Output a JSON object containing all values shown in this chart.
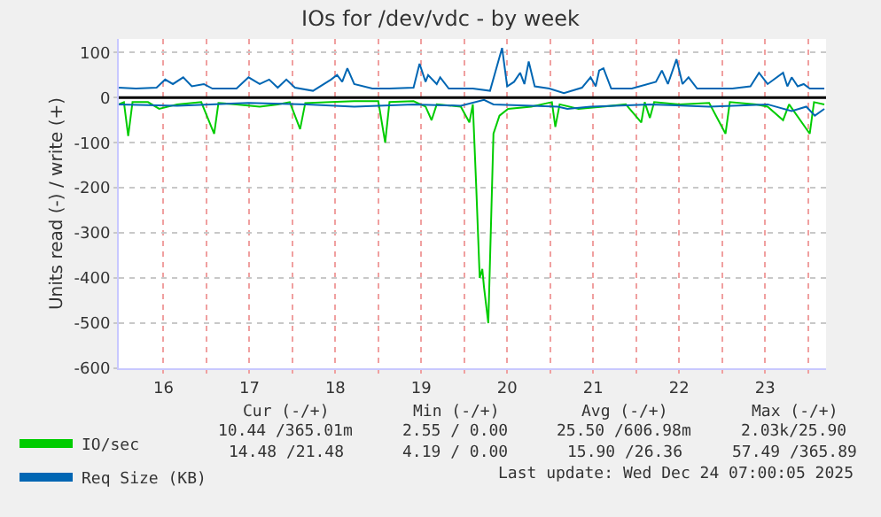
{
  "chart_data": {
    "type": "line",
    "title": "IOs for /dev/vdc - by week",
    "ylabel": "Units read (-) / write (+)",
    "xlim": [
      15.98,
      24.21
    ],
    "ylim": [
      -600,
      130
    ],
    "xticks": [
      {
        "value": 16.5,
        "label": "16"
      },
      {
        "value": 17,
        "label": null
      },
      {
        "value": 17.5,
        "label": "17"
      },
      {
        "value": 18,
        "label": null
      },
      {
        "value": 18.5,
        "label": "18"
      },
      {
        "value": 19,
        "label": null
      },
      {
        "value": 19.5,
        "label": "19"
      },
      {
        "value": 20,
        "label": null
      },
      {
        "value": 20.5,
        "label": "20"
      },
      {
        "value": 21,
        "label": null
      },
      {
        "value": 21.5,
        "label": "21"
      },
      {
        "value": 22,
        "label": null
      },
      {
        "value": 22.5,
        "label": "22"
      },
      {
        "value": 23,
        "label": null
      },
      {
        "value": 23.5,
        "label": "23"
      },
      {
        "value": 24,
        "label": null
      }
    ],
    "yticks": [
      -600,
      -500,
      -400,
      -300,
      -200,
      -100,
      0,
      100
    ],
    "grid": true,
    "legend": "bottom left",
    "marker": "none",
    "line_style": "solid",
    "ref_lines": [
      {
        "axis": "y",
        "value": 0,
        "color": "#000000"
      }
    ],
    "series": [
      {
        "name": "IO/sec",
        "color": "#00cc00",
        "x": [
          15.98,
          16.04,
          16.09,
          16.14,
          16.32,
          16.45,
          16.66,
          16.94,
          17.09,
          17.14,
          17.35,
          17.62,
          17.83,
          17.97,
          18.09,
          18.15,
          18.45,
          18.72,
          19.0,
          19.08,
          19.13,
          19.41,
          19.55,
          19.62,
          19.68,
          19.96,
          20.06,
          20.1,
          20.14,
          20.18,
          20.21,
          20.23,
          20.28,
          20.34,
          20.41,
          20.51,
          20.78,
          21.02,
          21.06,
          21.11,
          21.33,
          21.61,
          21.88,
          22.06,
          22.1,
          22.16,
          22.21,
          22.5,
          22.85,
          23.04,
          23.09,
          23.4,
          23.53,
          23.71,
          23.78,
          24.02,
          24.07,
          24.19
        ],
        "values": [
          -15,
          -10,
          -85,
          -10,
          -10,
          -25,
          -15,
          -10,
          -80,
          -12,
          -15,
          -20,
          -15,
          -10,
          -70,
          -12,
          -10,
          -8,
          -8,
          -100,
          -10,
          -8,
          -20,
          -50,
          -15,
          -20,
          -55,
          -15,
          -200,
          -400,
          -380,
          -420,
          -500,
          -80,
          -40,
          -25,
          -20,
          -10,
          -65,
          -15,
          -25,
          -20,
          -15,
          -55,
          -10,
          -45,
          -10,
          -15,
          -12,
          -80,
          -10,
          -15,
          -20,
          -50,
          -15,
          -80,
          -10,
          -15
        ]
      },
      {
        "name": "Req Size (KB)",
        "color": "#0066b3",
        "x": [
          15.98,
          16.18,
          16.42,
          16.52,
          16.61,
          16.73,
          16.83,
          16.97,
          17.07,
          17.35,
          17.49,
          17.62,
          17.73,
          17.83,
          17.93,
          18.03,
          18.24,
          18.45,
          18.52,
          18.58,
          18.64,
          18.72,
          18.93,
          19.13,
          19.41,
          19.48,
          19.55,
          19.58,
          19.68,
          19.72,
          19.82,
          20.1,
          20.3,
          20.44,
          20.5,
          20.58,
          20.65,
          20.7,
          20.75,
          20.82,
          20.99,
          21.16,
          21.37,
          21.47,
          21.53,
          21.57,
          21.62,
          21.71,
          21.95,
          22.23,
          22.3,
          22.37,
          22.47,
          22.54,
          22.61,
          22.71,
          23.12,
          23.33,
          23.43,
          23.53,
          23.71,
          23.76,
          23.81,
          23.88,
          23.95,
          24.02,
          24.19
        ],
        "values": [
          22,
          20,
          22,
          40,
          30,
          45,
          25,
          30,
          20,
          20,
          45,
          30,
          40,
          22,
          40,
          22,
          15,
          40,
          50,
          35,
          65,
          30,
          20,
          20,
          22,
          75,
          35,
          50,
          30,
          45,
          20,
          20,
          15,
          110,
          25,
          35,
          55,
          30,
          80,
          25,
          20,
          10,
          22,
          45,
          25,
          60,
          65,
          20,
          20,
          35,
          60,
          30,
          85,
          30,
          45,
          20,
          20,
          25,
          55,
          30,
          55,
          25,
          45,
          25,
          30,
          20,
          20
        ]
      },
      {
        "color": "#0066b3",
        "x": [
          15.98,
          16.66,
          17.49,
          18.17,
          18.72,
          19.41,
          19.96,
          20.23,
          20.34,
          21.09,
          21.2,
          21.47,
          22.16,
          22.85,
          23.53,
          23.81,
          23.98,
          24.08,
          24.19
        ],
        "values": [
          -15,
          -18,
          -12,
          -15,
          -20,
          -15,
          -18,
          -5,
          -15,
          -20,
          -25,
          -20,
          -15,
          -20,
          -15,
          -30,
          -20,
          -40,
          -25
        ]
      }
    ],
    "annotations": [
      "Cur (-/+)",
      "Min (-/+)",
      "Avg (-/+)",
      "Max (-/+)",
      "10.44 /365.01m",
      "2.55 / 0.00",
      "25.50 /606.98m",
      "2.03k/25.90",
      "14.48 /21.48",
      "4.19 / 0.00",
      "15.90 /26.36",
      "57.49 /365.89",
      "Last update: Wed Dec 24 07:00:05 2025"
    ]
  }
}
